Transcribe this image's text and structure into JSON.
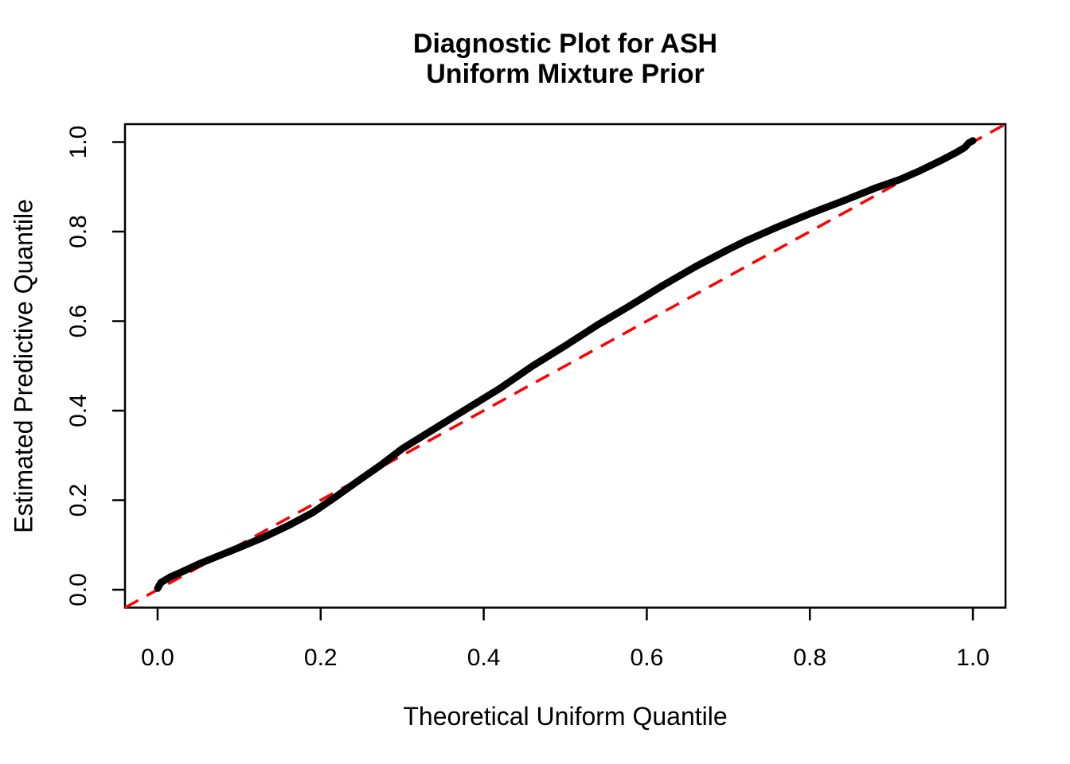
{
  "title": {
    "line1": "Diagnostic Plot for ASH",
    "line2": "Uniform Mixture Prior"
  },
  "chart_data": {
    "type": "line",
    "title": "Diagnostic Plot for ASH\nUniform Mixture Prior",
    "xlabel": "Theoretical Uniform Quantile",
    "ylabel": "Estimated Predictive Quantile",
    "xlim": [
      -0.04,
      1.04
    ],
    "ylim": [
      -0.04,
      1.04
    ],
    "grid": false,
    "legend": "none",
    "x_ticks": [
      0.0,
      0.2,
      0.4,
      0.6,
      0.8,
      1.0
    ],
    "y_ticks": [
      0.0,
      0.2,
      0.4,
      0.6,
      0.8,
      1.0
    ],
    "x_tick_labels": [
      "0.0",
      "0.2",
      "0.4",
      "0.6",
      "0.8",
      "1.0"
    ],
    "y_tick_labels": [
      "0.0",
      "0.2",
      "0.4",
      "0.6",
      "0.8",
      "1.0"
    ],
    "colors": {
      "curve": "#000000",
      "reference": "#FF0000",
      "frame": "#000000",
      "text": "#000000"
    },
    "series": [
      {
        "name": "estimated-predictive-quantile-curve",
        "color": "#000000",
        "line_width": 9,
        "points": [
          [
            0.0,
            0.003
          ],
          [
            0.004,
            0.016
          ],
          [
            0.015,
            0.028
          ],
          [
            0.03,
            0.04
          ],
          [
            0.05,
            0.057
          ],
          [
            0.07,
            0.072
          ],
          [
            0.1,
            0.094
          ],
          [
            0.13,
            0.117
          ],
          [
            0.16,
            0.143
          ],
          [
            0.19,
            0.172
          ],
          [
            0.215,
            0.203
          ],
          [
            0.245,
            0.242
          ],
          [
            0.275,
            0.28
          ],
          [
            0.3,
            0.315
          ],
          [
            0.34,
            0.36
          ],
          [
            0.38,
            0.405
          ],
          [
            0.42,
            0.45
          ],
          [
            0.46,
            0.5
          ],
          [
            0.5,
            0.545
          ],
          [
            0.54,
            0.592
          ],
          [
            0.58,
            0.635
          ],
          [
            0.62,
            0.68
          ],
          [
            0.66,
            0.722
          ],
          [
            0.7,
            0.76
          ],
          [
            0.72,
            0.778
          ],
          [
            0.76,
            0.81
          ],
          [
            0.8,
            0.84
          ],
          [
            0.84,
            0.868
          ],
          [
            0.88,
            0.897
          ],
          [
            0.91,
            0.916
          ],
          [
            0.935,
            0.936
          ],
          [
            0.96,
            0.958
          ],
          [
            0.98,
            0.977
          ],
          [
            0.99,
            0.988
          ],
          [
            0.995,
            0.998
          ],
          [
            1.0,
            1.003
          ]
        ]
      }
    ],
    "reference_line": {
      "name": "y-equals-x-diagonal",
      "color": "#FF0000",
      "style": "dashed",
      "line_width": 3.5,
      "from": [
        -0.04,
        -0.04
      ],
      "to": [
        1.04,
        1.04
      ]
    }
  }
}
